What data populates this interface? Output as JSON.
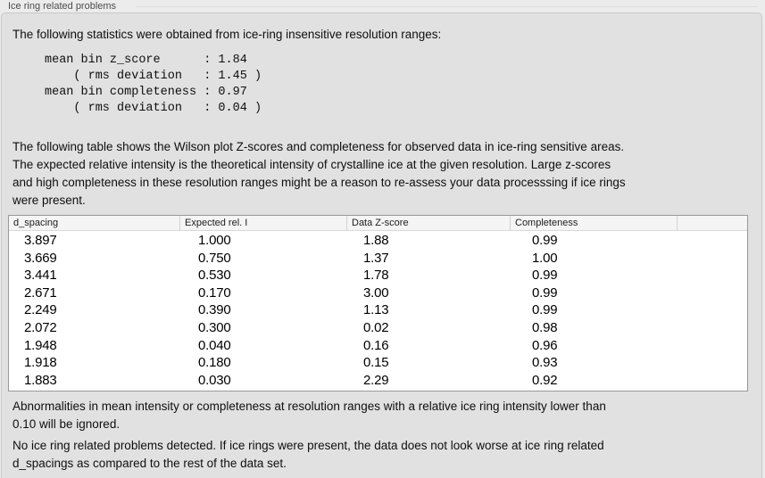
{
  "colors": {
    "page_bg": "#ececec",
    "box_bg": "#e1e1e1",
    "box_border": "#c9c9c9",
    "rule": "#dcdcdc",
    "title_color": "#4c4c4c",
    "table_border": "#999999",
    "header_bg": "#f5f5f5",
    "header_sep": "#d2d2d2"
  },
  "section": {
    "title": "Ice ring related problems"
  },
  "panel": {
    "intro": "The following statistics were obtained from ice-ring insensitive resolution ranges:",
    "stats_block": "mean bin z_score      : 1.84\n    ( rms deviation   : 1.45 )\nmean bin completeness : 0.97\n    ( rms deviation   : 0.04 )",
    "table_description": "The following table shows the Wilson plot Z-scores and completeness for observed data in ice-ring sensitive areas.\nThe expected relative intensity is the theoretical intensity of crystalline ice at the given resolution. Large z-scores\nand high completeness in these resolution ranges might be a reason to re-assess your data processsing if ice rings\nwere present.",
    "table": {
      "columns": [
        "d_spacing",
        "Expected rel. I",
        "Data Z-score",
        "Completeness",
        ""
      ],
      "rows": [
        [
          "3.897",
          "1.000",
          "1.88",
          "0.99"
        ],
        [
          "3.669",
          "0.750",
          "1.37",
          "1.00"
        ],
        [
          "3.441",
          "0.530",
          "1.78",
          "0.99"
        ],
        [
          "2.671",
          "0.170",
          "3.00",
          "0.99"
        ],
        [
          "2.249",
          "0.390",
          "1.13",
          "0.99"
        ],
        [
          "2.072",
          "0.300",
          "0.02",
          "0.98"
        ],
        [
          "1.948",
          "0.040",
          "0.16",
          "0.96"
        ],
        [
          "1.918",
          "0.180",
          "0.15",
          "0.93"
        ],
        [
          "1.883",
          "0.030",
          "2.29",
          "0.92"
        ]
      ]
    },
    "note_ignore": "Abnormalities in mean intensity or completeness at resolution ranges with a relative ice ring intensity lower than\n0.10 will be ignored.",
    "conclusion": "No ice ring related problems detected. If ice rings were present, the data does not look worse at ice ring related\nd_spacings as compared to the rest of the data set."
  }
}
